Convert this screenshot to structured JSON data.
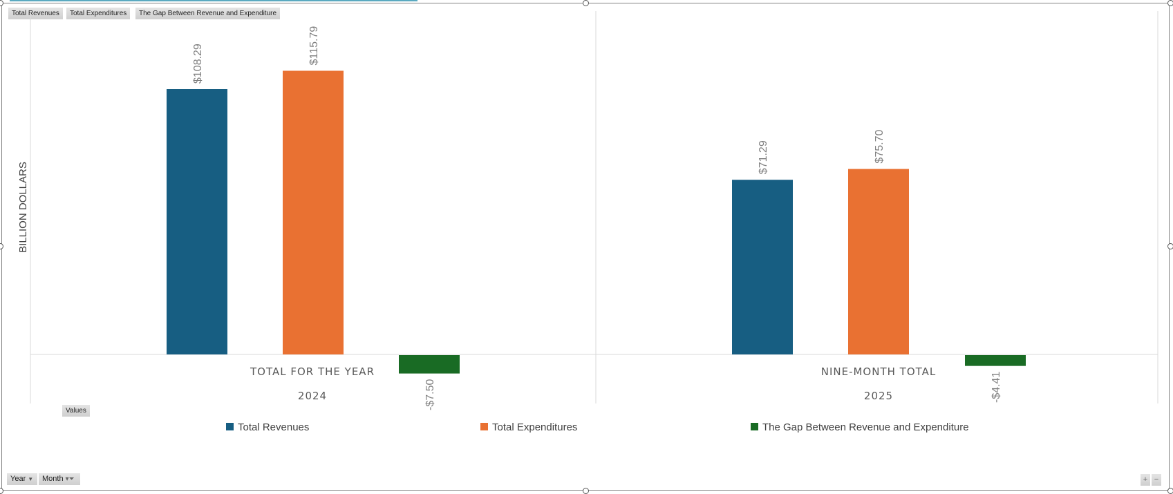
{
  "field_buttons": {
    "series": [
      "Total Revenues",
      "Total Expenditures",
      "The Gap Between Revenue and Expenditure"
    ],
    "values": "Values",
    "year": "Year",
    "month": "Month"
  },
  "zoom_controls": {
    "plus": "+",
    "minus": "−"
  },
  "chart_data": {
    "type": "bar",
    "ylabel": "BILLION DOLLARS",
    "categories": [
      {
        "label": "TOTAL FOR THE YEAR",
        "group": "2024"
      },
      {
        "label": "NINE-MONTH TOTAL",
        "group": "2025"
      }
    ],
    "series": [
      {
        "name": "Total Revenues",
        "color": "#175E82",
        "values": [
          108.29,
          71.29
        ],
        "labels": [
          "$108.29",
          "$71.29"
        ]
      },
      {
        "name": "Total Expenditures",
        "color": "#E97132",
        "values": [
          115.79,
          75.7
        ],
        "labels": [
          "$115.79",
          "$75.70"
        ]
      },
      {
        "name": "The Gap Between Revenue and Expenditure",
        "color": "#196B24",
        "values": [
          -7.5,
          -4.41
        ],
        "labels": [
          "-$7.50",
          "-$4.41"
        ]
      }
    ],
    "legend": "bottom",
    "grid": false
  }
}
